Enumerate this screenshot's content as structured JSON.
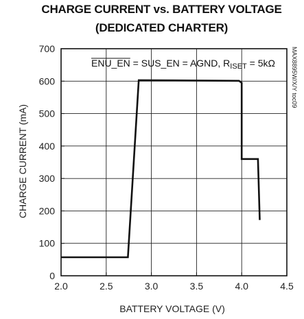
{
  "chart_data": {
    "type": "line",
    "title_line1": "CHARGE CURRENT vs. BATTERY VOLTAGE",
    "title_line2": "(DEDICATED CHARTER)",
    "xlabel": "BATTERY VOLTAGE (V)",
    "ylabel": "CHARGE CURRENT (mA)",
    "xlim": [
      2.0,
      4.5
    ],
    "ylim": [
      0,
      700
    ],
    "xticks": [
      "2.0",
      "2.5",
      "3.0",
      "3.5",
      "4.0",
      "4.5"
    ],
    "yticks": [
      "0",
      "100",
      "200",
      "300",
      "400",
      "500",
      "600",
      "700"
    ],
    "grid": true,
    "annotation": {
      "enu_en": "ENU_EN",
      "middle": " = SUS_EN = AGND, R",
      "subscript": "ISET",
      "tail": " = 5kΩ"
    },
    "figure_code": "MAX8895W/X/Y toc09",
    "series": [
      {
        "x": [
          2.0,
          2.74,
          2.86,
          3.97,
          4.0,
          4.0,
          4.18,
          4.2
        ],
        "y": [
          57,
          57,
          603,
          601,
          595,
          360,
          360,
          172
        ]
      }
    ]
  }
}
